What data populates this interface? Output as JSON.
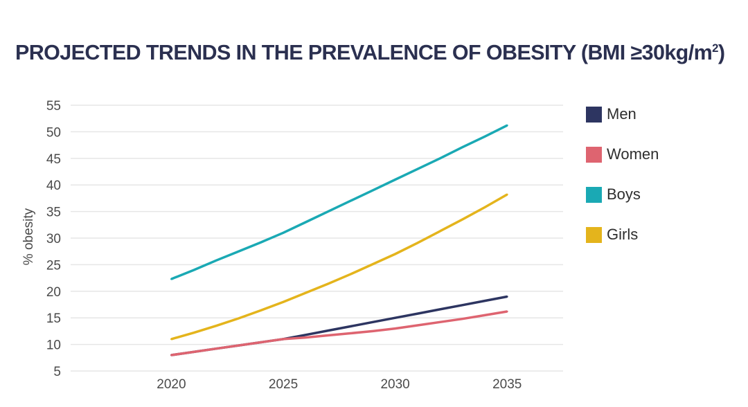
{
  "chart_data": {
    "type": "line",
    "title": "PROJECTED TRENDS IN THE PREVALENCE OF OBESITY (BMI ≥30kg/m",
    "title_superscript": "2",
    "title_close": ")",
    "xlabel": "",
    "ylabel": "% obesity",
    "x": [
      2020,
      2025,
      2030,
      2035
    ],
    "x_tick_labels": [
      "2020",
      "2025",
      "2030",
      "2035"
    ],
    "y_ticks": [
      5,
      10,
      15,
      20,
      25,
      30,
      35,
      40,
      45,
      50,
      55
    ],
    "ylim": [
      5,
      55
    ],
    "xlim": [
      2015.5,
      2037.5
    ],
    "grid": true,
    "legend_position": "right",
    "series": [
      {
        "name": "Men",
        "color": "#2d3561",
        "values": [
          8,
          11,
          15,
          19
        ],
        "curve": [
          [
            2020,
            8
          ],
          [
            2021,
            8.6
          ],
          [
            2022,
            9.2
          ],
          [
            2023,
            9.8
          ],
          [
            2024,
            10.4
          ],
          [
            2025,
            11
          ],
          [
            2026,
            11.8
          ],
          [
            2027,
            12.6
          ],
          [
            2028,
            13.4
          ],
          [
            2029,
            14.2
          ],
          [
            2030,
            15
          ],
          [
            2031,
            15.8
          ],
          [
            2032,
            16.6
          ],
          [
            2033,
            17.4
          ],
          [
            2034,
            18.2
          ],
          [
            2035,
            19
          ]
        ]
      },
      {
        "name": "Women",
        "color": "#de6470",
        "values": [
          8,
          11,
          13,
          16.2
        ],
        "curve": [
          [
            2020,
            8
          ],
          [
            2021,
            8.6
          ],
          [
            2022,
            9.2
          ],
          [
            2023,
            9.8
          ],
          [
            2024,
            10.4
          ],
          [
            2025,
            11
          ],
          [
            2026,
            11.3
          ],
          [
            2027,
            11.7
          ],
          [
            2028,
            12.1
          ],
          [
            2029,
            12.5
          ],
          [
            2030,
            13
          ],
          [
            2031,
            13.6
          ],
          [
            2032,
            14.2
          ],
          [
            2033,
            14.8
          ],
          [
            2034,
            15.5
          ],
          [
            2035,
            16.2
          ]
        ]
      },
      {
        "name": "Boys",
        "color": "#1aa9b4",
        "values": [
          22.3,
          31,
          41,
          51.2
        ],
        "curve": [
          [
            2020,
            22.3
          ],
          [
            2021,
            24
          ],
          [
            2022,
            25.8
          ],
          [
            2023,
            27.5
          ],
          [
            2024,
            29.2
          ],
          [
            2025,
            31
          ],
          [
            2026,
            33
          ],
          [
            2027,
            35
          ],
          [
            2028,
            37
          ],
          [
            2029,
            39
          ],
          [
            2030,
            41
          ],
          [
            2031,
            43
          ],
          [
            2032,
            45
          ],
          [
            2033,
            47.1
          ],
          [
            2034,
            49.1
          ],
          [
            2035,
            51.2
          ]
        ]
      },
      {
        "name": "Girls",
        "color": "#e4b41c",
        "values": [
          11,
          18,
          27,
          38.2
        ],
        "curve": [
          [
            2020,
            11
          ],
          [
            2021,
            12.2
          ],
          [
            2022,
            13.5
          ],
          [
            2023,
            14.9
          ],
          [
            2024,
            16.4
          ],
          [
            2025,
            18
          ],
          [
            2026,
            19.7
          ],
          [
            2027,
            21.4
          ],
          [
            2028,
            23.2
          ],
          [
            2029,
            25.1
          ],
          [
            2030,
            27
          ],
          [
            2031,
            29.1
          ],
          [
            2032,
            31.3
          ],
          [
            2033,
            33.5
          ],
          [
            2034,
            35.8
          ],
          [
            2035,
            38.2
          ]
        ]
      }
    ]
  }
}
